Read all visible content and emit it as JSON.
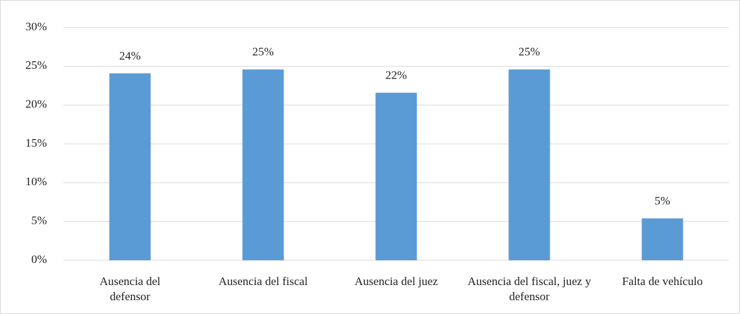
{
  "chart_data": {
    "type": "bar",
    "categories": [
      "Ausencia del defensor",
      "Ausencia del fiscal",
      "Ausencia del juez",
      "Ausencia del fiscal, juez y defensor",
      "Falta de vehículo"
    ],
    "values": [
      24.1,
      24.6,
      21.6,
      24.6,
      5.4
    ],
    "value_labels": [
      "24%",
      "25%",
      "22%",
      "25%",
      "5%"
    ],
    "color": "#5b9bd5",
    "ylim": [
      0,
      30
    ],
    "yticks": [
      {
        "value": 0,
        "label": "0%"
      },
      {
        "value": 5,
        "label": "5%"
      },
      {
        "value": 10,
        "label": "10%"
      },
      {
        "value": 15,
        "label": "15%"
      },
      {
        "value": 20,
        "label": "20%"
      },
      {
        "value": 25,
        "label": "25%"
      },
      {
        "value": 30,
        "label": "30%"
      }
    ],
    "grid": true
  }
}
